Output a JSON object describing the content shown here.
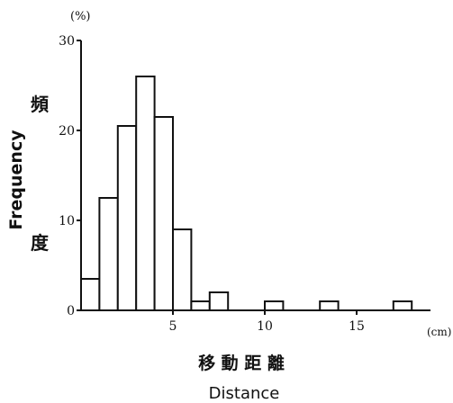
{
  "chart_data": {
    "type": "bar",
    "title": "",
    "ylabel": "Frequency",
    "ylabel_ja": [
      "頻",
      "度"
    ],
    "y_unit": "(%)",
    "xlabel": "Distance",
    "xlabel_ja": "移 動 距 離",
    "x_unit": "(cm)",
    "ylim": [
      0,
      30
    ],
    "xlim": [
      0,
      20
    ],
    "x_ticks": [
      5,
      10,
      15
    ],
    "y_ticks": [
      0,
      10,
      20,
      30
    ],
    "bin_width": 1,
    "bins": [
      {
        "x0": 0,
        "value": 3.5
      },
      {
        "x0": 1,
        "value": 12.5
      },
      {
        "x0": 2,
        "value": 20.5
      },
      {
        "x0": 3,
        "value": 26
      },
      {
        "x0": 4,
        "value": 21.5
      },
      {
        "x0": 5,
        "value": 9
      },
      {
        "x0": 6,
        "value": 1
      },
      {
        "x0": 7,
        "value": 2
      },
      {
        "x0": 10,
        "value": 1
      },
      {
        "x0": 13,
        "value": 1
      },
      {
        "x0": 17,
        "value": 1
      }
    ],
    "grid": false,
    "legend": "none"
  },
  "colors": {
    "bar_fill": "#ffffff",
    "line": "#111111",
    "background": "#ffffff"
  }
}
